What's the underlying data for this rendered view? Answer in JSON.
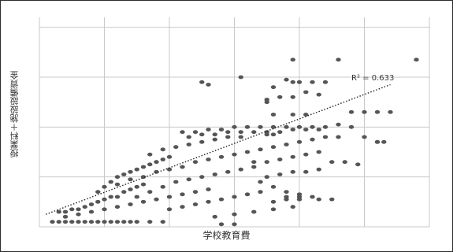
{
  "chart_data": {
    "type": "scatter",
    "title": "",
    "xlabel": "学校教育費",
    "ylabel": "授業料＋施設設備資金",
    "xlim": [
      0,
      6
    ],
    "ylim": [
      0,
      4.2
    ],
    "grid": true,
    "legend": "none",
    "marker_color": "#555555",
    "trendline": {
      "type": "linear",
      "x": [
        0.1,
        5.4
      ],
      "y": [
        0.25,
        2.85
      ],
      "style": "dotted",
      "r2_label": "R² = 0.633"
    },
    "points": [
      [
        0.2,
        0.1
      ],
      [
        0.3,
        0.1
      ],
      [
        0.4,
        0.1
      ],
      [
        0.5,
        0.1
      ],
      [
        0.6,
        0.1
      ],
      [
        0.7,
        0.1
      ],
      [
        0.8,
        0.1
      ],
      [
        0.9,
        0.1
      ],
      [
        1.0,
        0.1
      ],
      [
        1.1,
        0.1
      ],
      [
        1.2,
        0.1
      ],
      [
        1.3,
        0.1
      ],
      [
        1.4,
        0.1
      ],
      [
        1.5,
        0.1
      ],
      [
        1.7,
        0.1
      ],
      [
        1.9,
        0.1
      ],
      [
        0.3,
        0.3
      ],
      [
        0.4,
        0.3
      ],
      [
        0.5,
        0.35
      ],
      [
        0.6,
        0.35
      ],
      [
        0.7,
        0.4
      ],
      [
        0.8,
        0.45
      ],
      [
        0.9,
        0.5
      ],
      [
        1.0,
        0.55
      ],
      [
        1.1,
        0.6
      ],
      [
        1.2,
        0.6
      ],
      [
        1.3,
        0.7
      ],
      [
        1.4,
        0.75
      ],
      [
        1.5,
        0.8
      ],
      [
        1.6,
        0.85
      ],
      [
        0.4,
        0.2
      ],
      [
        0.6,
        0.25
      ],
      [
        0.8,
        0.3
      ],
      [
        1.0,
        0.35
      ],
      [
        1.2,
        0.4
      ],
      [
        1.4,
        0.45
      ],
      [
        1.6,
        0.5
      ],
      [
        1.8,
        0.55
      ],
      [
        2.0,
        0.6
      ],
      [
        2.2,
        0.65
      ],
      [
        2.4,
        0.7
      ],
      [
        2.6,
        0.75
      ],
      [
        0.9,
        0.7
      ],
      [
        1.0,
        0.8
      ],
      [
        1.1,
        0.9
      ],
      [
        1.2,
        1.0
      ],
      [
        1.3,
        1.05
      ],
      [
        1.4,
        1.1
      ],
      [
        1.5,
        1.15
      ],
      [
        1.6,
        1.2
      ],
      [
        1.7,
        1.25
      ],
      [
        1.8,
        1.3
      ],
      [
        1.9,
        1.35
      ],
      [
        2.0,
        1.4
      ],
      [
        1.2,
        0.85
      ],
      [
        1.4,
        0.95
      ],
      [
        1.6,
        1.0
      ],
      [
        1.8,
        1.1
      ],
      [
        2.0,
        1.15
      ],
      [
        2.2,
        1.2
      ],
      [
        2.4,
        1.3
      ],
      [
        2.6,
        1.35
      ],
      [
        2.8,
        1.4
      ],
      [
        3.0,
        1.45
      ],
      [
        1.5,
        0.6
      ],
      [
        1.7,
        0.7
      ],
      [
        1.9,
        0.8
      ],
      [
        2.1,
        0.9
      ],
      [
        2.3,
        0.95
      ],
      [
        2.5,
        1.0
      ],
      [
        2.7,
        1.05
      ],
      [
        2.9,
        1.1
      ],
      [
        3.1,
        1.15
      ],
      [
        3.3,
        1.2
      ],
      [
        2.0,
        0.35
      ],
      [
        2.2,
        0.4
      ],
      [
        2.4,
        0.45
      ],
      [
        2.6,
        0.5
      ],
      [
        2.8,
        0.55
      ],
      [
        3.0,
        0.6
      ],
      [
        3.2,
        0.65
      ],
      [
        3.4,
        0.7
      ],
      [
        1.7,
        1.45
      ],
      [
        1.9,
        1.55
      ],
      [
        2.1,
        1.6
      ],
      [
        2.3,
        1.65
      ],
      [
        2.5,
        1.7
      ],
      [
        2.7,
        1.75
      ],
      [
        2.9,
        1.8
      ],
      [
        3.1,
        1.8
      ],
      [
        2.2,
        1.9
      ],
      [
        2.4,
        1.9
      ],
      [
        2.6,
        1.95
      ],
      [
        2.8,
        1.95
      ],
      [
        3.0,
        2.0
      ],
      [
        3.2,
        2.0
      ],
      [
        3.4,
        2.0
      ],
      [
        3.6,
        2.0
      ],
      [
        3.8,
        2.0
      ],
      [
        4.0,
        2.0
      ],
      [
        4.2,
        2.0
      ],
      [
        2.3,
        1.8
      ],
      [
        2.5,
        1.85
      ],
      [
        2.7,
        1.85
      ],
      [
        2.9,
        1.9
      ],
      [
        3.1,
        1.9
      ],
      [
        3.3,
        1.9
      ],
      [
        3.5,
        1.9
      ],
      [
        3.7,
        1.9
      ],
      [
        3.9,
        1.95
      ],
      [
        4.1,
        1.95
      ],
      [
        3.2,
        1.5
      ],
      [
        3.4,
        1.55
      ],
      [
        3.6,
        1.6
      ],
      [
        3.8,
        1.65
      ],
      [
        4.0,
        1.7
      ],
      [
        4.2,
        1.75
      ],
      [
        4.4,
        1.8
      ],
      [
        4.6,
        1.8
      ],
      [
        3.3,
        1.3
      ],
      [
        3.5,
        1.3
      ],
      [
        3.7,
        1.35
      ],
      [
        3.9,
        1.4
      ],
      [
        4.1,
        1.45
      ],
      [
        4.3,
        1.5
      ],
      [
        3.5,
        1.0
      ],
      [
        3.7,
        1.05
      ],
      [
        3.9,
        1.1
      ],
      [
        4.1,
        1.1
      ],
      [
        4.3,
        1.15
      ],
      [
        3.4,
        0.9
      ],
      [
        3.6,
        0.8
      ],
      [
        3.8,
        0.7
      ],
      [
        4.0,
        0.65
      ],
      [
        4.2,
        0.6
      ],
      [
        2.7,
        0.2
      ],
      [
        3.0,
        0.25
      ],
      [
        3.3,
        0.3
      ],
      [
        3.6,
        0.35
      ],
      [
        3.9,
        0.4
      ],
      [
        3.6,
        0.5
      ],
      [
        3.8,
        0.55
      ],
      [
        4.0,
        0.55
      ],
      [
        4.4,
        2.0
      ],
      [
        4.6,
        2.05
      ],
      [
        4.8,
        2.0
      ],
      [
        5.0,
        1.8
      ],
      [
        5.2,
        1.7
      ],
      [
        4.3,
        1.95
      ],
      [
        4.5,
        1.3
      ],
      [
        4.7,
        1.3
      ],
      [
        4.9,
        1.25
      ],
      [
        4.3,
        0.55
      ],
      [
        4.5,
        0.55
      ],
      [
        3.8,
        0.6
      ],
      [
        4.0,
        0.6
      ],
      [
        2.8,
        0.05
      ],
      [
        3.0,
        0.05
      ],
      [
        3.5,
        1.85
      ],
      [
        3.6,
        1.85
      ],
      [
        3.6,
        2.8
      ],
      [
        3.8,
        2.95
      ],
      [
        3.9,
        2.9
      ],
      [
        4.0,
        2.9
      ],
      [
        4.2,
        2.9
      ],
      [
        4.4,
        2.9
      ],
      [
        3.7,
        2.6
      ],
      [
        3.9,
        2.6
      ],
      [
        4.1,
        2.7
      ],
      [
        4.3,
        2.65
      ],
      [
        3.5,
        2.5
      ],
      [
        3.6,
        2.25
      ],
      [
        3.9,
        2.25
      ],
      [
        4.1,
        2.25
      ],
      [
        3.5,
        2.55
      ],
      [
        4.8,
        2.3
      ],
      [
        5.0,
        2.3
      ],
      [
        5.2,
        2.3
      ],
      [
        5.4,
        2.3
      ],
      [
        5.2,
        1.7
      ],
      [
        5.3,
        1.7
      ],
      [
        3.9,
        3.35
      ],
      [
        4.6,
        3.35
      ],
      [
        5.8,
        3.35
      ],
      [
        2.5,
        2.9
      ],
      [
        2.6,
        2.85
      ],
      [
        3.1,
        3.0
      ]
    ]
  }
}
